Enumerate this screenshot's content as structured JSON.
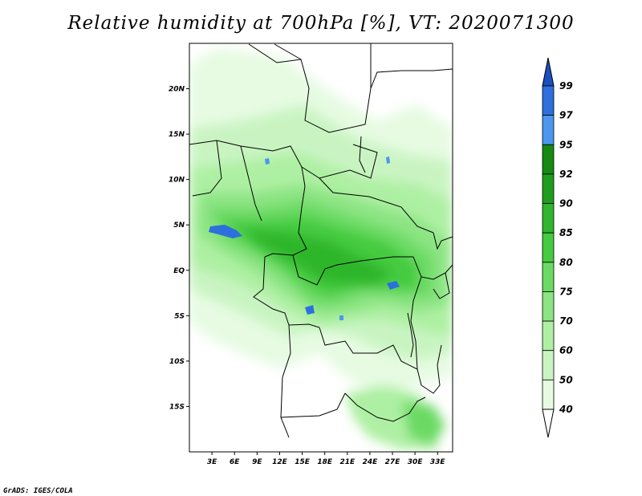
{
  "title": "Relative humidity at 700hPa [%], VT: 2020071300",
  "credit": "GrADS: IGES/COLA",
  "map": {
    "lon_range": [
      0,
      35
    ],
    "lat_range": [
      -20,
      25
    ],
    "lat_ticks": [
      {
        "value": 20,
        "label": "20N"
      },
      {
        "value": 15,
        "label": "15N"
      },
      {
        "value": 10,
        "label": "10N"
      },
      {
        "value": 5,
        "label": "5N"
      },
      {
        "value": 0,
        "label": "EQ"
      },
      {
        "value": -5,
        "label": "5S"
      },
      {
        "value": -10,
        "label": "10S"
      },
      {
        "value": -15,
        "label": "15S"
      }
    ],
    "lon_ticks": [
      {
        "value": 3,
        "label": "3E"
      },
      {
        "value": 6,
        "label": "6E"
      },
      {
        "value": 9,
        "label": "9E"
      },
      {
        "value": 12,
        "label": "12E"
      },
      {
        "value": 15,
        "label": "15E"
      },
      {
        "value": 18,
        "label": "18E"
      },
      {
        "value": 21,
        "label": "21E"
      },
      {
        "value": 24,
        "label": "24E"
      },
      {
        "value": 27,
        "label": "27E"
      },
      {
        "value": 30,
        "label": "30E"
      },
      {
        "value": 33,
        "label": "33E"
      }
    ]
  },
  "colorbar": {
    "levels": [
      "40",
      "50",
      "60",
      "70",
      "75",
      "80",
      "85",
      "90",
      "92",
      "95",
      "97",
      "99"
    ],
    "colors": [
      "#ffffff",
      "#e6fbe2",
      "#c9f4c2",
      "#aef0a3",
      "#8ce483",
      "#6ada64",
      "#45cb3f",
      "#2fb62c",
      "#1f9d1d",
      "#148a13",
      "#4b97ee",
      "#2e6fde",
      "#1a4fbf"
    ]
  }
}
